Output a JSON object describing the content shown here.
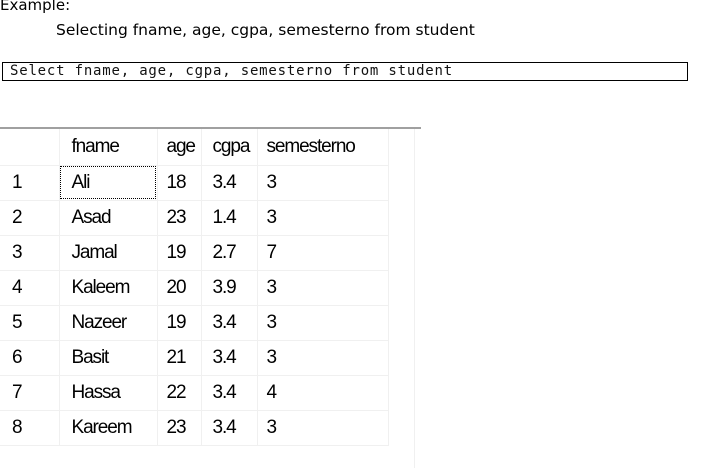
{
  "example": {
    "heading": "Example:",
    "description": "Selecting fname, age, cgpa, semesterno from student"
  },
  "query": {
    "text": "Select fname, age, cgpa, semesterno from student"
  },
  "grid": {
    "columns": [
      "fname",
      "age",
      "cgpa",
      "semesterno"
    ],
    "rows": [
      {
        "num": "1",
        "fname": "Ali",
        "age": "18",
        "cgpa": "3.4",
        "semesterno": "3"
      },
      {
        "num": "2",
        "fname": "Asad",
        "age": "23",
        "cgpa": "1.4",
        "semesterno": "3"
      },
      {
        "num": "3",
        "fname": "Jamal",
        "age": "19",
        "cgpa": "2.7",
        "semesterno": "7"
      },
      {
        "num": "4",
        "fname": "Kaleem",
        "age": "20",
        "cgpa": "3.9",
        "semesterno": "3"
      },
      {
        "num": "5",
        "fname": "Nazeer",
        "age": "19",
        "cgpa": "3.4",
        "semesterno": "3"
      },
      {
        "num": "6",
        "fname": "Basit",
        "age": "21",
        "cgpa": "3.4",
        "semesterno": "3"
      },
      {
        "num": "7",
        "fname": "Hassa",
        "age": "22",
        "cgpa": "3.4",
        "semesterno": "4"
      },
      {
        "num": "8",
        "fname": "Kareem",
        "age": "23",
        "cgpa": "3.4",
        "semesterno": "3"
      }
    ],
    "selected_cell": "Ali"
  }
}
